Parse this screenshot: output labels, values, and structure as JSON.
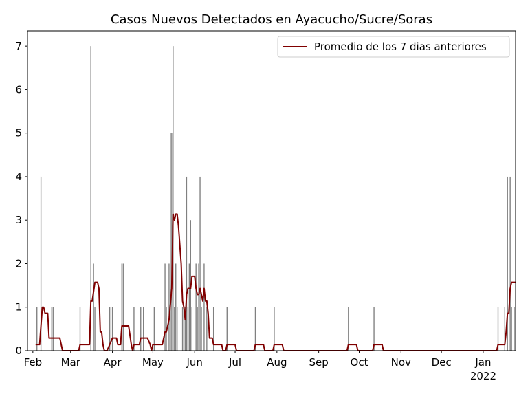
{
  "chart_data": {
    "type": "bar_line",
    "title": "Casos Nuevos Detectados en Ayacucho/Sucre/Soras",
    "xlim": [
      -4,
      358
    ],
    "ylim": [
      0,
      7.35
    ],
    "yticks": [
      0,
      1,
      2,
      3,
      4,
      5,
      6,
      7
    ],
    "xticks": [
      {
        "value": 0,
        "label": "Feb"
      },
      {
        "value": 28,
        "label": "Mar"
      },
      {
        "value": 59,
        "label": "Apr"
      },
      {
        "value": 89,
        "label": "May"
      },
      {
        "value": 120,
        "label": "Jun"
      },
      {
        "value": 150,
        "label": "Jul"
      },
      {
        "value": 181,
        "label": "Aug"
      },
      {
        "value": 212,
        "label": "Sep"
      },
      {
        "value": 242,
        "label": "Oct"
      },
      {
        "value": 273,
        "label": "Nov"
      },
      {
        "value": 303,
        "label": "Dec"
      },
      {
        "value": 334,
        "label": "Jan\n2022"
      }
    ],
    "legend": "upper right",
    "bars": {
      "color": "#808080",
      "x": [
        3,
        6,
        14,
        15,
        35,
        43,
        45,
        46,
        57,
        59,
        66,
        67,
        75,
        80,
        82,
        90,
        98,
        99,
        101,
        102,
        103,
        104,
        105,
        106,
        107,
        111,
        112,
        113,
        114,
        115,
        116,
        117,
        118,
        121,
        122,
        123,
        124,
        125,
        127,
        129,
        134,
        144,
        165,
        179,
        234,
        253,
        345,
        350,
        352,
        354,
        355,
        357
      ],
      "values": [
        1,
        4,
        1,
        1,
        1,
        7,
        2,
        1,
        1,
        1,
        2,
        2,
        1,
        1,
        1,
        1,
        2,
        1,
        2,
        5,
        5,
        7,
        1,
        2,
        1,
        1,
        1,
        1,
        4,
        1,
        2,
        3,
        1,
        2,
        1,
        2,
        4,
        1,
        2,
        1,
        1,
        1,
        1,
        1,
        1,
        1,
        1,
        1,
        4,
        4,
        1,
        1
      ]
    },
    "series": [
      {
        "name": "Promedio de los 7 dias anteriores",
        "color": "#800000",
        "x": [
          2,
          5,
          6,
          7,
          8,
          9,
          11,
          12,
          20,
          22,
          34,
          35,
          42,
          43,
          44,
          46,
          48,
          49,
          50,
          51,
          52,
          53,
          55,
          57,
          59,
          62,
          63,
          65,
          66,
          71,
          73,
          74,
          75,
          79,
          80,
          85,
          87,
          88,
          89,
          96,
          98,
          99,
          101,
          103,
          104,
          105,
          106,
          107,
          108,
          110,
          111,
          112,
          113,
          114,
          115,
          117,
          118,
          120,
          121,
          122,
          123,
          124,
          125,
          126,
          127,
          128,
          129,
          130,
          131,
          133,
          134,
          140,
          141,
          143,
          144,
          150,
          151,
          164,
          165,
          171,
          172,
          178,
          179,
          185,
          186,
          233,
          234,
          240,
          241,
          252,
          253,
          259,
          260,
          344,
          345,
          350,
          351,
          352,
          353,
          354,
          355,
          358
        ],
        "values": [
          0.14,
          0.14,
          0.57,
          1,
          1,
          0.86,
          0.86,
          0.29,
          0.29,
          0,
          0,
          0.14,
          0.14,
          1.14,
          1.14,
          1.57,
          1.57,
          1.43,
          0.43,
          0.43,
          0.14,
          0,
          0,
          0.14,
          0.29,
          0.29,
          0.14,
          0.14,
          0.57,
          0.57,
          0.14,
          0,
          0.14,
          0.14,
          0.29,
          0.29,
          0.14,
          0,
          0.14,
          0.14,
          0.43,
          0.43,
          0.71,
          1.43,
          3.14,
          3,
          3.14,
          3.14,
          2.86,
          2,
          1.14,
          1,
          0.71,
          1.29,
          1.43,
          1.43,
          1.71,
          1.71,
          1.43,
          1.29,
          1.29,
          1.43,
          1.29,
          1.14,
          1.43,
          1.14,
          1.14,
          0.86,
          0.29,
          0.29,
          0.14,
          0.14,
          0,
          0,
          0.14,
          0.14,
          0,
          0,
          0.14,
          0.14,
          0,
          0,
          0.14,
          0.14,
          0,
          0,
          0.14,
          0.14,
          0,
          0,
          0.14,
          0.14,
          0,
          0,
          0.14,
          0.14,
          0.43,
          0.86,
          0.86,
          1.43,
          1.57,
          1.57
        ]
      }
    ]
  }
}
